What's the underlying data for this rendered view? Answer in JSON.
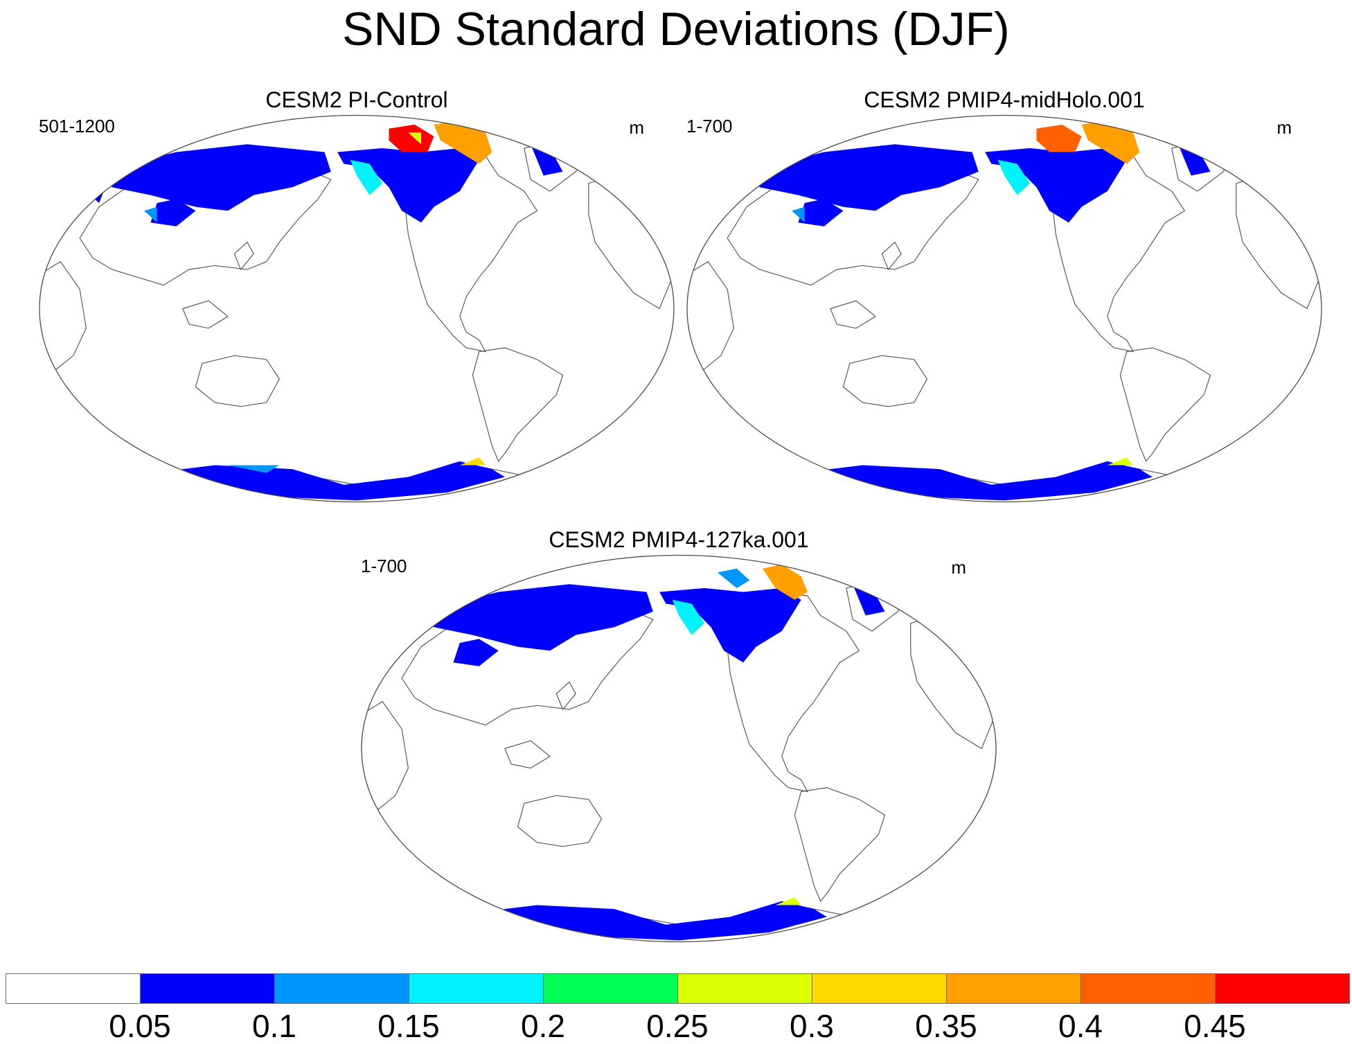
{
  "title": "SND Standard Deviations (DJF)",
  "units": "m",
  "panels": [
    {
      "id": "pi-control",
      "title": "CESM2 PI-Control",
      "years": "501-1200",
      "units": "m"
    },
    {
      "id": "midholo",
      "title": "CESM2 PMIP4-midHolo.001",
      "years": "1-700",
      "units": "m"
    },
    {
      "id": "lig127",
      "title": "CESM2 PMIP4-127ka.001",
      "years": "1-700",
      "units": "m"
    }
  ],
  "colorbar": {
    "labels": [
      "0.05",
      "0.1",
      "0.15",
      "0.2",
      "0.25",
      "0.3",
      "0.35",
      "0.4",
      "0.45"
    ],
    "colors": [
      "#ffffff",
      "#0000ff",
      "#0096ff",
      "#00f2ff",
      "#00ff55",
      "#dcff00",
      "#ffd800",
      "#ffa000",
      "#ff5f00",
      "#ff0000"
    ]
  },
  "chart_data": {
    "type": "map",
    "title": "SND Standard Deviations (DJF)",
    "projection": "Robinson",
    "units": "m",
    "levels": [
      0.05,
      0.1,
      0.15,
      0.2,
      0.25,
      0.3,
      0.35,
      0.4,
      0.45
    ],
    "maps": [
      {
        "title": "CESM2 PI-Control",
        "years": "501-1200"
      },
      {
        "title": "CESM2 PMIP4-midHolo.001",
        "years": "1-700"
      },
      {
        "title": "CESM2 PMIP4-127ka.001",
        "years": "1-700"
      }
    ]
  }
}
